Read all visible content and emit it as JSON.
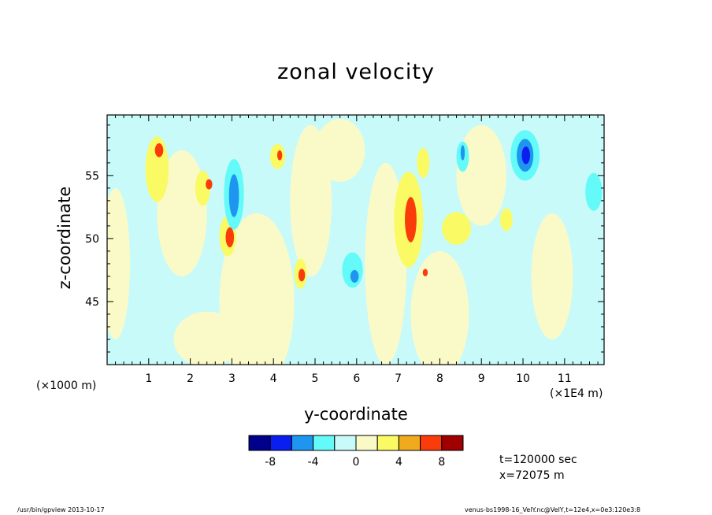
{
  "chart_data": {
    "type": "heatmap",
    "title": "zonal velocity",
    "xlabel": "y-coordinate",
    "ylabel": "z-coordinate",
    "x_unit_left": "(×1000 m)",
    "x_unit_right": "(×1E4 m)",
    "xlim": [
      0,
      11.95
    ],
    "ylim": [
      40,
      59.8
    ],
    "x_ticks": [
      "1",
      "2",
      "3",
      "4",
      "5",
      "6",
      "7",
      "8",
      "9",
      "10",
      "11"
    ],
    "y_ticks": [
      "45",
      "50",
      "55"
    ],
    "colorbar": {
      "levels": [
        -10,
        -8,
        -6,
        -4,
        -2,
        0,
        2,
        4,
        6,
        8,
        10
      ],
      "tick_labels": [
        "-8",
        "-4",
        "0",
        "4",
        "8"
      ],
      "tick_values": [
        -8,
        -4,
        0,
        4,
        8
      ],
      "colors": [
        "#00008c",
        "#0a1ef0",
        "#1e96f0",
        "#64fafa",
        "#c8fafa",
        "#fafac8",
        "#fafa64",
        "#f0aa1e",
        "#fa3c0a",
        "#a00000"
      ]
    },
    "features": [
      {
        "y": 1.2,
        "z": 55.5,
        "value": 3,
        "ry": 0.28,
        "rz": 2.6
      },
      {
        "y": 1.25,
        "z": 57.0,
        "value": 6,
        "ry": 0.1,
        "rz": 0.55
      },
      {
        "y": 2.3,
        "z": 54.0,
        "value": 3,
        "ry": 0.18,
        "rz": 1.4
      },
      {
        "y": 2.45,
        "z": 54.3,
        "value": 6,
        "ry": 0.08,
        "rz": 0.4
      },
      {
        "y": 2.9,
        "z": 50.2,
        "value": 3,
        "ry": 0.2,
        "rz": 1.6
      },
      {
        "y": 2.95,
        "z": 50.1,
        "value": 6,
        "ry": 0.1,
        "rz": 0.8
      },
      {
        "y": 3.05,
        "z": 53.5,
        "value": -3,
        "ry": 0.24,
        "rz": 2.8
      },
      {
        "y": 3.05,
        "z": 53.4,
        "value": -5,
        "ry": 0.12,
        "rz": 1.7
      },
      {
        "y": 4.1,
        "z": 56.5,
        "value": 3,
        "ry": 0.18,
        "rz": 1.0
      },
      {
        "y": 4.15,
        "z": 56.6,
        "value": 6,
        "ry": 0.06,
        "rz": 0.4
      },
      {
        "y": 4.65,
        "z": 47.2,
        "value": 3,
        "ry": 0.15,
        "rz": 1.2
      },
      {
        "y": 4.68,
        "z": 47.1,
        "value": 6,
        "ry": 0.08,
        "rz": 0.5
      },
      {
        "y": 5.9,
        "z": 47.5,
        "value": -3,
        "ry": 0.25,
        "rz": 1.4
      },
      {
        "y": 5.95,
        "z": 47.0,
        "value": -6,
        "ry": 0.1,
        "rz": 0.5
      },
      {
        "y": 7.25,
        "z": 51.5,
        "value": 3,
        "ry": 0.35,
        "rz": 3.8
      },
      {
        "y": 7.3,
        "z": 51.5,
        "value": 6,
        "ry": 0.14,
        "rz": 1.8
      },
      {
        "y": 7.65,
        "z": 47.3,
        "value": 6,
        "ry": 0.06,
        "rz": 0.3
      },
      {
        "y": 8.55,
        "z": 56.5,
        "value": -3,
        "ry": 0.15,
        "rz": 1.2
      },
      {
        "y": 8.55,
        "z": 56.8,
        "value": -6,
        "ry": 0.05,
        "rz": 0.6
      },
      {
        "y": 10.05,
        "z": 56.6,
        "value": -3,
        "ry": 0.35,
        "rz": 2.0
      },
      {
        "y": 10.05,
        "z": 56.6,
        "value": -6,
        "ry": 0.2,
        "rz": 1.3
      },
      {
        "y": 10.07,
        "z": 56.6,
        "value": -8,
        "ry": 0.1,
        "rz": 0.7
      },
      {
        "y": 8.4,
        "z": 50.8,
        "value": 3,
        "ry": 0.35,
        "rz": 1.3
      },
      {
        "y": 7.6,
        "z": 56.0,
        "value": 3,
        "ry": 0.15,
        "rz": 1.2
      },
      {
        "y": 9.6,
        "z": 51.5,
        "value": 3,
        "ry": 0.15,
        "rz": 0.9
      },
      {
        "y": 11.7,
        "z": 53.7,
        "value": -3,
        "ry": 0.2,
        "rz": 1.5
      }
    ],
    "run_info": {
      "time": "t=120000 sec",
      "position": "x=72075 m"
    }
  },
  "footer": {
    "left": "/usr/bin/gpview   2013-10-17",
    "right": "venus-bs1998-16_VelY.nc@VelY,t=12e4,x=0e3:120e3:8"
  }
}
